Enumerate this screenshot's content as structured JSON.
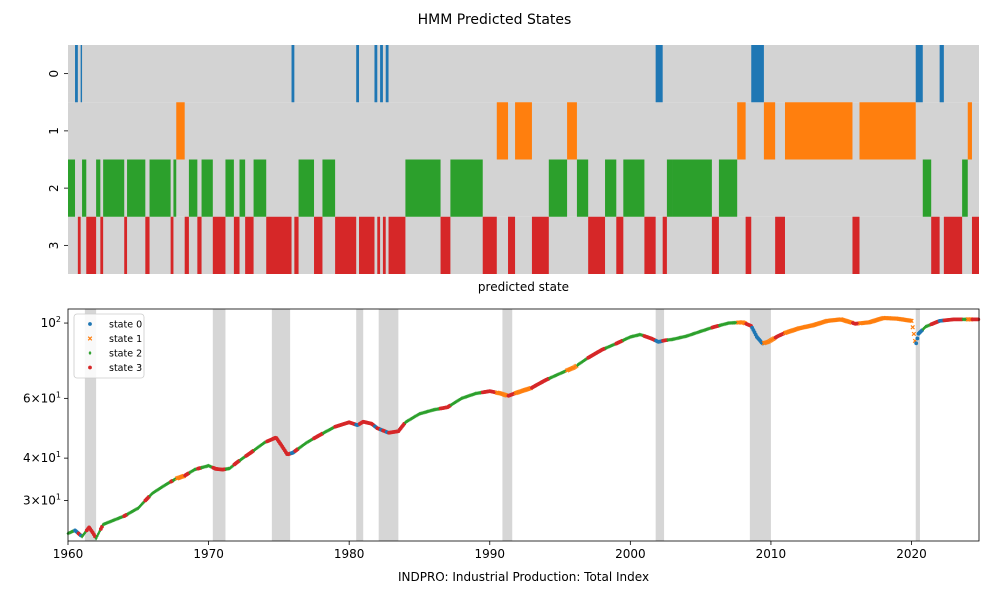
{
  "figure_title": "HMM Predicted States",
  "chart_data": [
    {
      "type": "heatmap",
      "xlabel": "predicted state",
      "row_labels": [
        "0",
        "1",
        "2",
        "3"
      ],
      "row_colors": [
        "#1f77b4",
        "#ff7f0e",
        "#2ca02c",
        "#d62728"
      ],
      "background_color": "#d3d3d3",
      "x_range": [
        1960.0,
        2024.8
      ],
      "state_segments": [
        [
          1960.0,
          1960.5,
          2
        ],
        [
          1960.5,
          1960.7,
          0
        ],
        [
          1960.7,
          1960.9,
          3
        ],
        [
          1960.9,
          1961.0,
          0
        ],
        [
          1961.0,
          1961.3,
          2
        ],
        [
          1961.3,
          1962.0,
          3
        ],
        [
          1962.0,
          1962.3,
          2
        ],
        [
          1962.3,
          1962.5,
          3
        ],
        [
          1962.5,
          1964.0,
          2
        ],
        [
          1964.0,
          1964.2,
          3
        ],
        [
          1964.2,
          1965.5,
          2
        ],
        [
          1965.5,
          1965.8,
          3
        ],
        [
          1965.8,
          1967.3,
          2
        ],
        [
          1967.3,
          1967.5,
          3
        ],
        [
          1967.5,
          1967.7,
          2
        ],
        [
          1967.7,
          1968.3,
          1
        ],
        [
          1968.3,
          1968.6,
          3
        ],
        [
          1968.6,
          1969.2,
          2
        ],
        [
          1969.2,
          1969.5,
          3
        ],
        [
          1969.5,
          1970.3,
          2
        ],
        [
          1970.3,
          1971.2,
          3
        ],
        [
          1971.2,
          1971.8,
          2
        ],
        [
          1971.8,
          1972.2,
          3
        ],
        [
          1972.2,
          1972.6,
          2
        ],
        [
          1972.6,
          1973.2,
          3
        ],
        [
          1973.2,
          1974.1,
          2
        ],
        [
          1974.1,
          1975.9,
          3
        ],
        [
          1975.9,
          1976.1,
          0
        ],
        [
          1976.1,
          1976.4,
          3
        ],
        [
          1976.4,
          1977.5,
          2
        ],
        [
          1977.5,
          1978.1,
          3
        ],
        [
          1978.1,
          1979.0,
          2
        ],
        [
          1979.0,
          1980.5,
          3
        ],
        [
          1980.5,
          1980.7,
          0
        ],
        [
          1980.7,
          1981.8,
          3
        ],
        [
          1981.8,
          1982.0,
          0
        ],
        [
          1982.0,
          1982.2,
          3
        ],
        [
          1982.2,
          1982.4,
          0
        ],
        [
          1982.4,
          1982.6,
          3
        ],
        [
          1982.6,
          1982.8,
          0
        ],
        [
          1982.8,
          1984.0,
          3
        ],
        [
          1984.0,
          1986.5,
          2
        ],
        [
          1986.5,
          1987.2,
          3
        ],
        [
          1987.2,
          1989.5,
          2
        ],
        [
          1989.5,
          1990.5,
          3
        ],
        [
          1990.5,
          1991.3,
          1
        ],
        [
          1991.3,
          1991.8,
          3
        ],
        [
          1991.8,
          1993.0,
          1
        ],
        [
          1993.0,
          1994.2,
          3
        ],
        [
          1994.2,
          1995.5,
          2
        ],
        [
          1995.5,
          1996.2,
          1
        ],
        [
          1996.2,
          1997.0,
          2
        ],
        [
          1997.0,
          1998.2,
          3
        ],
        [
          1998.2,
          1999.0,
          2
        ],
        [
          1999.0,
          1999.5,
          3
        ],
        [
          1999.5,
          2001.0,
          2
        ],
        [
          2001.0,
          2001.8,
          3
        ],
        [
          2001.8,
          2002.3,
          0
        ],
        [
          2002.3,
          2002.6,
          3
        ],
        [
          2002.6,
          2003.0,
          2
        ],
        [
          2003.0,
          2005.8,
          2
        ],
        [
          2005.8,
          2006.3,
          3
        ],
        [
          2006.3,
          2007.6,
          2
        ],
        [
          2007.6,
          2008.2,
          1
        ],
        [
          2008.2,
          2008.6,
          3
        ],
        [
          2008.6,
          2009.5,
          0
        ],
        [
          2009.5,
          2010.3,
          1
        ],
        [
          2010.3,
          2011.0,
          3
        ],
        [
          2011.0,
          2015.8,
          1
        ],
        [
          2015.8,
          2016.3,
          3
        ],
        [
          2016.3,
          2020.3,
          1
        ],
        [
          2020.3,
          2020.8,
          0
        ],
        [
          2020.8,
          2021.4,
          2
        ],
        [
          2021.4,
          2022.0,
          3
        ],
        [
          2022.0,
          2022.3,
          0
        ],
        [
          2022.3,
          2023.6,
          3
        ],
        [
          2023.6,
          2024.0,
          2
        ],
        [
          2024.0,
          2024.3,
          1
        ],
        [
          2024.3,
          2024.8,
          3
        ]
      ]
    },
    {
      "type": "scatter",
      "xlabel": "INDPRO: Industrial Production: Total Index",
      "ylabel": "",
      "xlim": [
        1960.0,
        2024.8
      ],
      "ylim": [
        22.8,
        110
      ],
      "y_scale": "log",
      "grid": false,
      "x_ticks": [
        1960,
        1970,
        1980,
        1990,
        2000,
        2010,
        2020
      ],
      "x_tick_labels": [
        "1960",
        "1970",
        "1980",
        "1990",
        "2000",
        "2010",
        "2020"
      ],
      "y_ticks": [
        30,
        40,
        60,
        100
      ],
      "y_tick_labels": [
        {
          "base": "3",
          "mult": "×",
          "ten": "10",
          "exp": "1"
        },
        {
          "base": "4",
          "mult": "×",
          "ten": "10",
          "exp": "1"
        },
        {
          "base": "6",
          "mult": "×",
          "ten": "10",
          "exp": "1"
        },
        {
          "base": "",
          "mult": "",
          "ten": "10",
          "exp": "2"
        }
      ],
      "recessions": [
        [
          1961.2,
          1962.0
        ],
        [
          1970.3,
          1971.2
        ],
        [
          1974.5,
          1975.8
        ],
        [
          1980.5,
          1981.0
        ],
        [
          1982.1,
          1983.5
        ],
        [
          1990.9,
          1991.6
        ],
        [
          2001.8,
          2002.4
        ],
        [
          2008.5,
          2010.0
        ],
        [
          2020.3,
          2020.6
        ]
      ],
      "legend_position": "top-left",
      "legend": [
        {
          "label": "state 0",
          "marker": "circle",
          "color": "#1f77b4"
        },
        {
          "label": "state 1",
          "marker": "x",
          "color": "#ff7f0e"
        },
        {
          "label": "state 2",
          "marker": "diamond",
          "color": "#2ca02c"
        },
        {
          "label": "state 3",
          "marker": "circle",
          "color": "#d62728"
        }
      ],
      "series_curve": [
        [
          1960.0,
          24.0
        ],
        [
          1960.5,
          24.5
        ],
        [
          1961.0,
          23.5
        ],
        [
          1961.5,
          25.0
        ],
        [
          1961.8,
          24.0
        ],
        [
          1962.0,
          23.2
        ],
        [
          1962.5,
          25.5
        ],
        [
          1963.0,
          26.0
        ],
        [
          1964.0,
          27.0
        ],
        [
          1965.0,
          28.5
        ],
        [
          1966.0,
          31.5
        ],
        [
          1967.0,
          33.5
        ],
        [
          1967.7,
          34.8
        ],
        [
          1968.3,
          35.5
        ],
        [
          1969.0,
          37.0
        ],
        [
          1970.0,
          38.0
        ],
        [
          1970.5,
          37.2
        ],
        [
          1971.0,
          37.0
        ],
        [
          1971.5,
          37.3
        ],
        [
          1972.0,
          38.8
        ],
        [
          1973.0,
          41.5
        ],
        [
          1974.0,
          44.5
        ],
        [
          1974.8,
          46.0
        ],
        [
          1975.2,
          43.5
        ],
        [
          1975.6,
          41.0
        ],
        [
          1976.0,
          41.5
        ],
        [
          1977.0,
          44.5
        ],
        [
          1978.0,
          47.0
        ],
        [
          1979.0,
          49.5
        ],
        [
          1980.0,
          51.0
        ],
        [
          1980.6,
          50.0
        ],
        [
          1981.0,
          51.2
        ],
        [
          1981.6,
          50.5
        ],
        [
          1982.0,
          49.0
        ],
        [
          1982.8,
          47.5
        ],
        [
          1983.5,
          48.0
        ],
        [
          1984.0,
          51.0
        ],
        [
          1985.0,
          54.0
        ],
        [
          1986.0,
          55.5
        ],
        [
          1987.0,
          56.5
        ],
        [
          1988.0,
          60.0
        ],
        [
          1989.0,
          62.0
        ],
        [
          1990.0,
          63.0
        ],
        [
          1990.8,
          62.0
        ],
        [
          1991.3,
          61.0
        ],
        [
          1992.0,
          62.5
        ],
        [
          1993.0,
          64.5
        ],
        [
          1994.0,
          68.0
        ],
        [
          1995.0,
          71.0
        ],
        [
          1996.0,
          74.0
        ],
        [
          1997.0,
          79.0
        ],
        [
          1998.0,
          83.5
        ],
        [
          1999.0,
          87.0
        ],
        [
          2000.0,
          91.0
        ],
        [
          2000.7,
          92.5
        ],
        [
          2001.5,
          90.0
        ],
        [
          2002.0,
          88.0
        ],
        [
          2002.5,
          89.0
        ],
        [
          2003.0,
          89.5
        ],
        [
          2004.0,
          91.5
        ],
        [
          2005.0,
          94.5
        ],
        [
          2006.0,
          97.5
        ],
        [
          2007.0,
          100.0
        ],
        [
          2008.0,
          100.5
        ],
        [
          2008.6,
          98.0
        ],
        [
          2009.0,
          91.0
        ],
        [
          2009.4,
          87.0
        ],
        [
          2009.8,
          88.0
        ],
        [
          2010.5,
          91.5
        ],
        [
          2011.0,
          93.5
        ],
        [
          2012.0,
          96.5
        ],
        [
          2013.0,
          98.5
        ],
        [
          2014.0,
          101.5
        ],
        [
          2015.0,
          102.5
        ],
        [
          2016.0,
          99.5
        ],
        [
          2017.0,
          100.5
        ],
        [
          2018.0,
          103.5
        ],
        [
          2019.0,
          103.0
        ],
        [
          2020.0,
          101.5
        ],
        [
          2020.3,
          86.0
        ],
        [
          2020.5,
          93.0
        ],
        [
          2021.0,
          97.5
        ],
        [
          2022.0,
          101.5
        ],
        [
          2023.0,
          102.5
        ],
        [
          2024.0,
          102.5
        ],
        [
          2024.8,
          102.5
        ]
      ]
    }
  ]
}
